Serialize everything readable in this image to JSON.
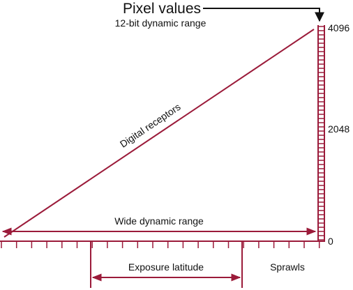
{
  "header": {
    "title": "Pixel values",
    "subtitle": "12-bit dynamic range"
  },
  "scale": {
    "labels": [
      "4096",
      "2048",
      "0"
    ]
  },
  "labels": {
    "diagonal": "Digital receptors",
    "wide": "Wide dynamic range",
    "latitude": "Exposure latitude",
    "credit": "Sprawls"
  }
}
